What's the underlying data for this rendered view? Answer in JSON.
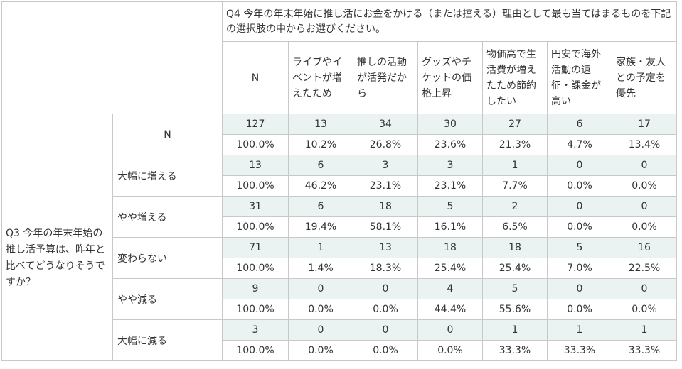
{
  "q4_header": "Q4 今年の年末年始に推し活にお金をかける（または控える）理由として最も当てはまるものを下記の選択肢の中からお選びください。",
  "q3_header": "Q3 今年の年末年始の推し活予算は、昨年と比べてどうなりそうですか？",
  "n_label": "N",
  "columns": [
    "ライブやイベントが増えたため",
    "推しの活動が活発だから",
    "グッズやチケットの価格上昇",
    "物価高で生活費が増えたため節約したい",
    "円安で海外活動の遠征・課金が高い",
    "家族・友人との予定を優先"
  ],
  "total_row": {
    "label": "N",
    "counts": [
      "127",
      "13",
      "34",
      "30",
      "27",
      "6",
      "17"
    ],
    "pcts": [
      "100.0%",
      "10.2%",
      "26.8%",
      "23.6%",
      "21.3%",
      "4.7%",
      "13.4%"
    ]
  },
  "rows": [
    {
      "label": "大幅に増える",
      "counts": [
        "13",
        "6",
        "3",
        "3",
        "1",
        "0",
        "0"
      ],
      "pcts": [
        "100.0%",
        "46.2%",
        "23.1%",
        "23.1%",
        "7.7%",
        "0.0%",
        "0.0%"
      ]
    },
    {
      "label": "やや増える",
      "counts": [
        "31",
        "6",
        "18",
        "5",
        "2",
        "0",
        "0"
      ],
      "pcts": [
        "100.0%",
        "19.4%",
        "58.1%",
        "16.1%",
        "6.5%",
        "0.0%",
        "0.0%"
      ]
    },
    {
      "label": "変わらない",
      "counts": [
        "71",
        "1",
        "13",
        "18",
        "18",
        "5",
        "16"
      ],
      "pcts": [
        "100.0%",
        "1.4%",
        "18.3%",
        "25.4%",
        "25.4%",
        "7.0%",
        "22.5%"
      ]
    },
    {
      "label": "やや減る",
      "counts": [
        "9",
        "0",
        "0",
        "4",
        "5",
        "0",
        "0"
      ],
      "pcts": [
        "100.0%",
        "0.0%",
        "0.0%",
        "44.4%",
        "55.6%",
        "0.0%",
        "0.0%"
      ]
    },
    {
      "label": "大幅に減る",
      "counts": [
        "3",
        "0",
        "0",
        "0",
        "1",
        "1",
        "1"
      ],
      "pcts": [
        "100.0%",
        "0.0%",
        "0.0%",
        "0.0%",
        "33.3%",
        "33.3%",
        "33.3%"
      ]
    }
  ]
}
